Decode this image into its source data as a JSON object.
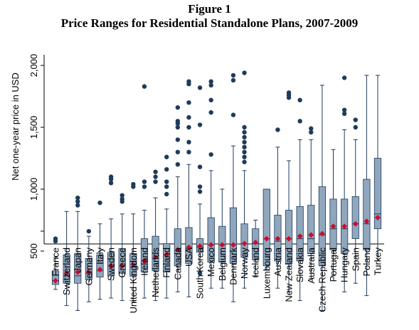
{
  "figure_label": "Figure 1",
  "chart_data": {
    "type": "box",
    "title": "Price Ranges for Residential Standalone Plans, 2007-2009",
    "xlabel": "",
    "ylabel": "Net one-year price in USD",
    "ylim": [
      0,
      2000
    ],
    "yticks": [
      500,
      1000,
      1500,
      2000
    ],
    "ytick_labels": [
      "500",
      "1,000",
      "1,500",
      "2,000"
    ],
    "grid": false,
    "colors": {
      "box": "#8fa6bd",
      "box_edge": "#1f3b5c",
      "whisker": "#1f3b5c",
      "mean": "#c8102e",
      "outlier": "#1f3b5c"
    },
    "categories": [
      "France",
      "Switzerland",
      "Japan",
      "Germany",
      "Italy",
      "Sweden",
      "Greece",
      "United Kingdom",
      "Ireland",
      "Netherlands",
      "Finland",
      "Canada",
      "USA",
      "South Korea",
      "Mexico",
      "Belgium",
      "Denmark",
      "Norway",
      "Iceland",
      "Luxembourg",
      "Austria",
      "New Zealand",
      "Slovakia",
      "Australia",
      "Czech Republic",
      "Portugal",
      "Hungary",
      "Spain",
      "Poland",
      "Turkey"
    ],
    "series": [
      {
        "category": "France",
        "min": 190,
        "q1": 230,
        "median": 260,
        "q3": 340,
        "max": 450,
        "mean": 260,
        "outliers": [
          580,
          600
        ]
      },
      {
        "category": "Switzerland",
        "min": 60,
        "q1": 240,
        "median": 300,
        "q3": 470,
        "max": 820,
        "mean": 320,
        "outliers": []
      },
      {
        "category": "Japan",
        "min": 20,
        "q1": 240,
        "median": 300,
        "q3": 480,
        "max": 820,
        "mean": 330,
        "outliers": [
          870,
          900,
          930
        ]
      },
      {
        "category": "Germany",
        "min": 90,
        "q1": 270,
        "median": 320,
        "q3": 440,
        "max": 620,
        "mean": 330,
        "outliers": [
          660
        ]
      },
      {
        "category": "Italy",
        "min": 110,
        "q1": 290,
        "median": 340,
        "q3": 470,
        "max": 720,
        "mean": 350,
        "outliers": [
          890
        ]
      },
      {
        "category": "Sweden",
        "min": 120,
        "q1": 300,
        "median": 380,
        "q3": 490,
        "max": 760,
        "mean": 380,
        "outliers": [
          1050,
          1080,
          1100
        ]
      },
      {
        "category": "Greece",
        "min": 100,
        "q1": 320,
        "median": 380,
        "q3": 520,
        "max": 800,
        "mean": 380,
        "outliers": [
          900,
          920,
          950
        ]
      },
      {
        "category": "United Kingdom",
        "min": 90,
        "q1": 300,
        "median": 370,
        "q3": 480,
        "max": 800,
        "mean": 390,
        "outliers": [
          1020,
          1040
        ]
      },
      {
        "category": "Ireland",
        "min": 120,
        "q1": 330,
        "median": 420,
        "q3": 600,
        "max": 830,
        "mean": 420,
        "outliers": [
          1020,
          1060,
          1830
        ]
      },
      {
        "category": "Netherlands",
        "min": 100,
        "q1": 340,
        "median": 440,
        "q3": 620,
        "max": 930,
        "mean": 450,
        "outliers": [
          1060,
          1100,
          1140
        ]
      },
      {
        "category": "Finland",
        "min": 120,
        "q1": 330,
        "median": 470,
        "q3": 560,
        "max": 840,
        "mean": 470,
        "outliers": [
          960,
          1020,
          1060,
          1160,
          1260
        ]
      },
      {
        "category": "Canada",
        "min": 170,
        "q1": 380,
        "median": 500,
        "q3": 680,
        "max": 1100,
        "mean": 510,
        "outliers": [
          1200,
          1300,
          1400,
          1500,
          1530,
          1550,
          1660
        ]
      },
      {
        "category": "USA",
        "min": 130,
        "q1": 400,
        "median": 520,
        "q3": 690,
        "max": 1200,
        "mean": 530,
        "outliers": [
          1300,
          1380,
          1500,
          1580,
          1700,
          1850,
          1870
        ]
      },
      {
        "category": "South Korea",
        "min": 330,
        "q1": 490,
        "median": 530,
        "q3": 600,
        "max": 880,
        "mean": 540,
        "outliers": [
          320,
          980,
          1020,
          1180,
          1520,
          1820
        ]
      },
      {
        "category": "Mexico",
        "min": 200,
        "q1": 410,
        "median": 550,
        "q3": 770,
        "max": 1150,
        "mean": 550,
        "outliers": [
          1280,
          1620,
          1720,
          1840,
          1870
        ]
      },
      {
        "category": "Belgium",
        "min": 200,
        "q1": 410,
        "median": 550,
        "q3": 700,
        "max": 1000,
        "mean": 550,
        "outliers": []
      },
      {
        "category": "Denmark",
        "min": 90,
        "q1": 400,
        "median": 550,
        "q3": 850,
        "max": 1350,
        "mean": 550,
        "outliers": [
          1600,
          1880,
          1920
        ]
      },
      {
        "category": "Norway",
        "min": 200,
        "q1": 450,
        "median": 560,
        "q3": 720,
        "max": 1150,
        "mean": 560,
        "outliers": [
          1220,
          1260,
          1300,
          1340,
          1380,
          1420,
          1460,
          1500,
          1940
        ]
      },
      {
        "category": "Iceland",
        "min": 290,
        "q1": 430,
        "median": 560,
        "q3": 680,
        "max": 750,
        "mean": 570,
        "outliers": []
      },
      {
        "category": "Luxembourg",
        "min": 350,
        "q1": 380,
        "median": 600,
        "q3": 1000,
        "max": 1000,
        "mean": 600,
        "outliers": []
      },
      {
        "category": "Austria",
        "min": 200,
        "q1": 420,
        "median": 580,
        "q3": 790,
        "max": 1340,
        "mean": 600,
        "outliers": [
          1480
        ]
      },
      {
        "category": "New Zealand",
        "min": 170,
        "q1": 400,
        "median": 600,
        "q3": 830,
        "max": 1230,
        "mean": 600,
        "outliers": [
          1740,
          1760,
          1780
        ]
      },
      {
        "category": "Slovakia",
        "min": 100,
        "q1": 420,
        "median": 600,
        "q3": 860,
        "max": 1400,
        "mean": 620,
        "outliers": [
          1550,
          1720
        ]
      },
      {
        "category": "Australia",
        "min": 280,
        "q1": 480,
        "median": 600,
        "q3": 870,
        "max": 1400,
        "mean": 630,
        "outliers": [
          1460,
          1490
        ]
      },
      {
        "category": "Czech Republic",
        "min": 20,
        "q1": 380,
        "median": 630,
        "q3": 1020,
        "max": 1840,
        "mean": 640,
        "outliers": []
      },
      {
        "category": "Portugal",
        "min": 300,
        "q1": 510,
        "median": 680,
        "q3": 920,
        "max": 1320,
        "mean": 700,
        "outliers": []
      },
      {
        "category": "Hungary",
        "min": 170,
        "q1": 480,
        "median": 680,
        "q3": 920,
        "max": 1480,
        "mean": 700,
        "outliers": [
          1610,
          1640,
          1900
        ]
      },
      {
        "category": "Spain",
        "min": 240,
        "q1": 600,
        "median": 720,
        "q3": 940,
        "max": 1400,
        "mean": 720,
        "outliers": [
          1500,
          1560
        ]
      },
      {
        "category": "Poland",
        "min": 140,
        "q1": 510,
        "median": 720,
        "q3": 1080,
        "max": 1920,
        "mean": 740,
        "outliers": []
      },
      {
        "category": "Turkey",
        "min": 420,
        "q1": 680,
        "median": 800,
        "q3": 1250,
        "max": 1920,
        "mean": 770,
        "outliers": []
      }
    ]
  }
}
